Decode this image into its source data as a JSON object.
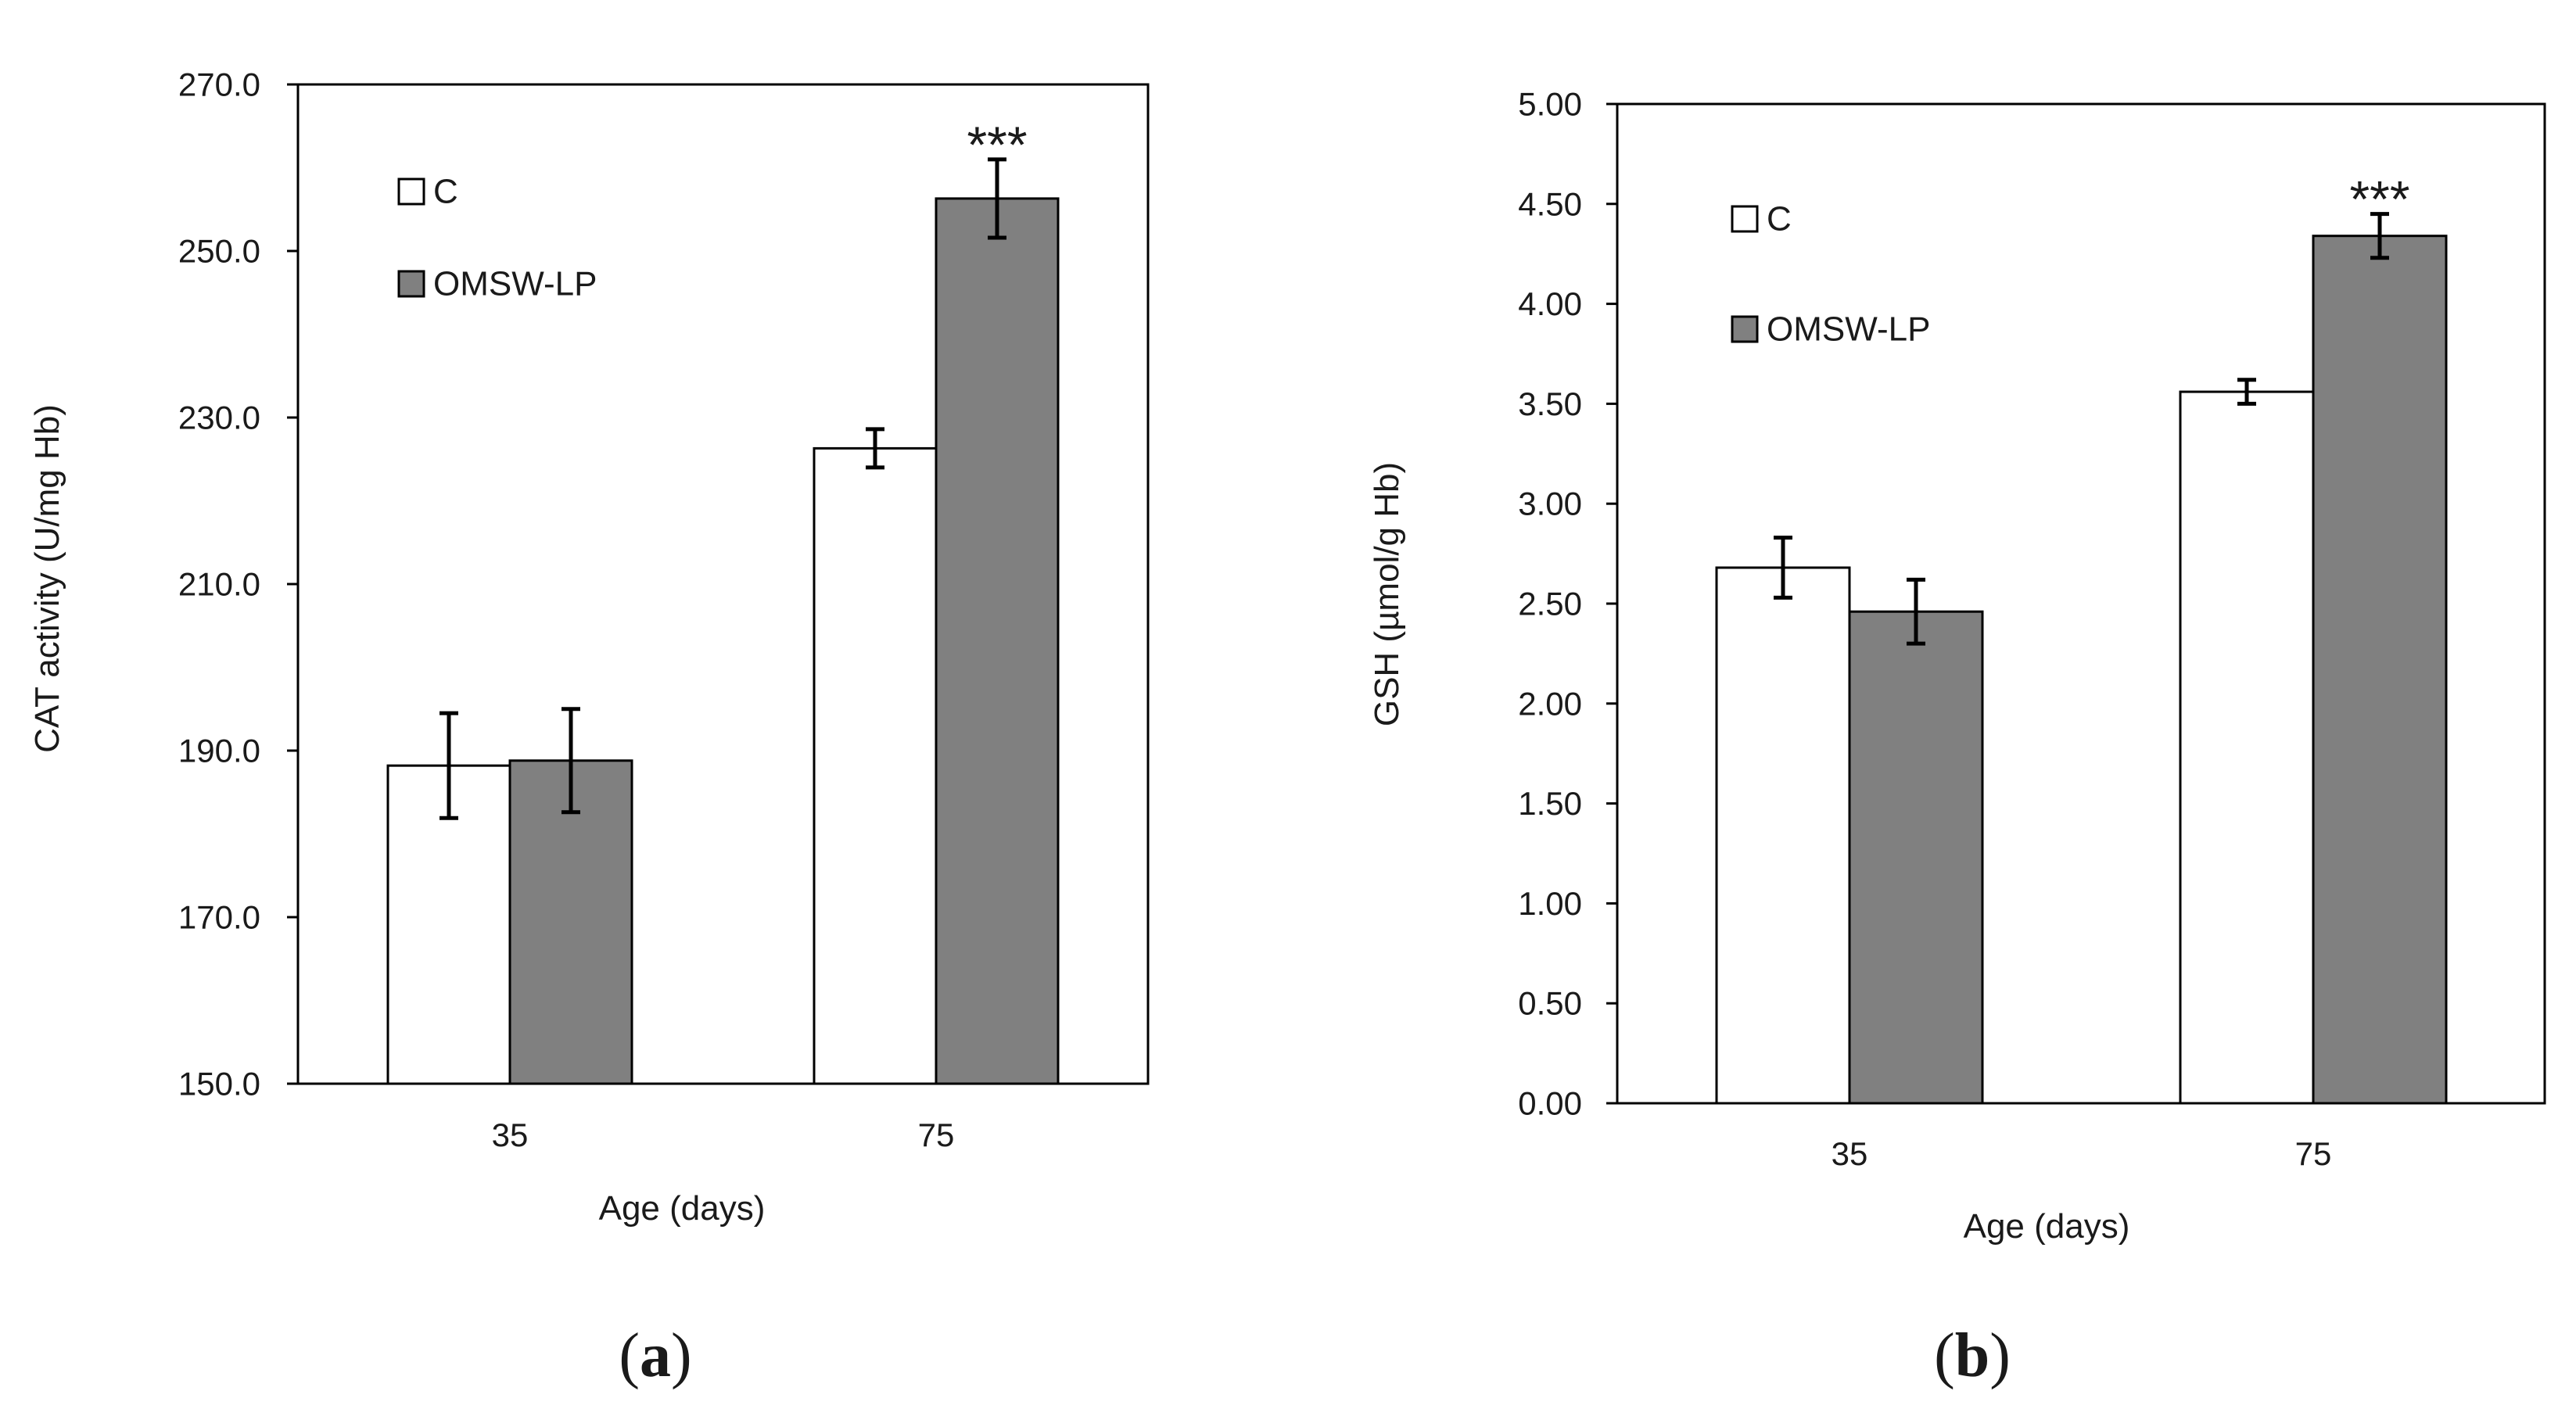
{
  "chart_data": [
    {
      "type": "bar",
      "panel_label": "a",
      "title": "",
      "xlabel": "Age (days)",
      "ylabel": "CAT activity (U/mg Hb)",
      "categories": [
        "35",
        "75"
      ],
      "ylim": [
        150.0,
        270.0
      ],
      "yticks": [
        150.0,
        170.0,
        190.0,
        210.0,
        230.0,
        250.0,
        270.0
      ],
      "ytick_labels": [
        "150.0",
        "170.0",
        "190.0",
        "210.0",
        "230.0",
        "250.0",
        "270.0"
      ],
      "series": [
        {
          "name": "C",
          "color": "#ffffff",
          "values": [
            188.2,
            226.3
          ],
          "errors": [
            6.3,
            2.3
          ]
        },
        {
          "name": "OMSW-LP",
          "color": "#808080",
          "values": [
            188.8,
            256.3
          ],
          "errors": [
            6.2,
            4.7
          ]
        }
      ],
      "annotations": [
        {
          "text": "***",
          "category": "75",
          "series": "OMSW-LP"
        }
      ],
      "legend": {
        "position": "top-left",
        "entries": [
          "C",
          "OMSW-LP"
        ]
      },
      "grid": false
    },
    {
      "type": "bar",
      "panel_label": "b",
      "title": "",
      "xlabel": "Age (days)",
      "ylabel": "GSH (µmol/g Hb)",
      "categories": [
        "35",
        "75"
      ],
      "ylim": [
        0.0,
        5.0
      ],
      "yticks": [
        0.0,
        0.5,
        1.0,
        1.5,
        2.0,
        2.5,
        3.0,
        3.5,
        4.0,
        4.5,
        5.0
      ],
      "ytick_labels": [
        "0.00",
        "0.50",
        "1.00",
        "1.50",
        "2.00",
        "2.50",
        "3.00",
        "3.50",
        "4.00",
        "4.50",
        "5.00"
      ],
      "series": [
        {
          "name": "C",
          "color": "#ffffff",
          "values": [
            2.68,
            3.56
          ],
          "errors": [
            0.15,
            0.06
          ]
        },
        {
          "name": "OMSW-LP",
          "color": "#808080",
          "values": [
            2.46,
            4.34
          ],
          "errors": [
            0.16,
            0.11
          ]
        }
      ],
      "annotations": [
        {
          "text": "***",
          "category": "75",
          "series": "OMSW-LP"
        }
      ],
      "legend": {
        "position": "top-left",
        "entries": [
          "C",
          "OMSW-LP"
        ]
      },
      "grid": false
    }
  ]
}
